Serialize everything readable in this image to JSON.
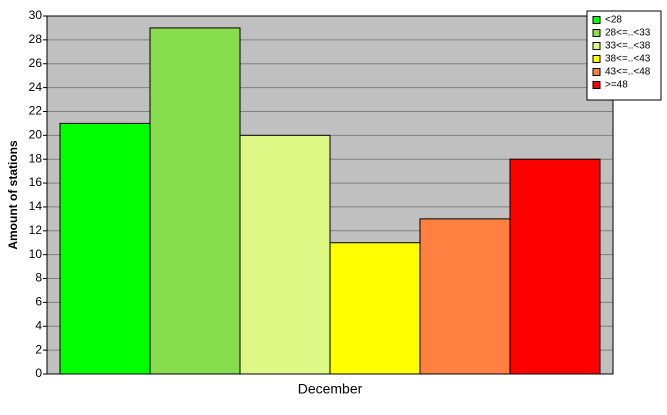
{
  "chart_data": {
    "type": "bar",
    "y_label": "Amount of stations",
    "categories": [
      "December"
    ],
    "series": [
      {
        "name": "<28",
        "color": "#00ff00",
        "values": [
          21
        ]
      },
      {
        "name": "28<=..<33",
        "color": "#88dd4f",
        "values": [
          29
        ]
      },
      {
        "name": "33<=..<38",
        "color": "#def886",
        "values": [
          20
        ]
      },
      {
        "name": "38<=..<43",
        "color": "#ffff00",
        "values": [
          11
        ]
      },
      {
        "name": "43<=..<48",
        "color": "#ff8040",
        "values": [
          13
        ]
      },
      {
        "name": ">=48",
        "color": "#ff0000",
        "values": [
          18
        ]
      }
    ],
    "ylim": [
      0,
      30
    ],
    "yticks": [
      0,
      2,
      4,
      6,
      8,
      10,
      12,
      14,
      16,
      18,
      20,
      22,
      24,
      26,
      28,
      30
    ],
    "grid": true,
    "legend": "top-right"
  }
}
